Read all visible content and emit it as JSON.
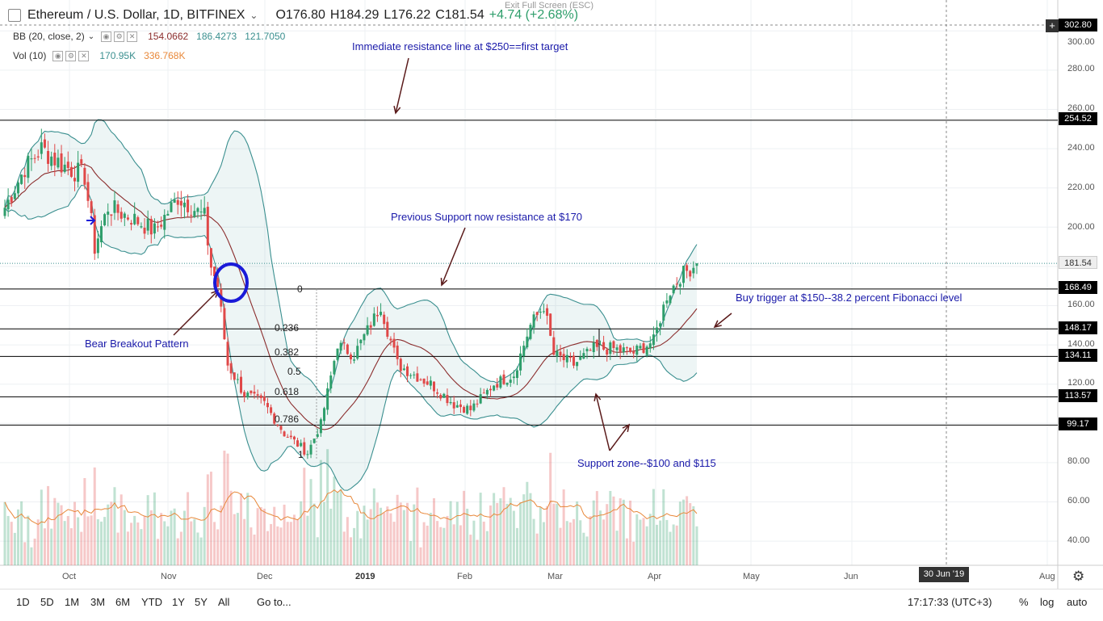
{
  "header": {
    "symbol": "Ethereum / U.S. Dollar, 1D, BITFINEX",
    "open": "O176.80",
    "high": "H184.29",
    "low": "L176.22",
    "close": "C181.54",
    "change": "+4.74 (+2.68%)",
    "exit_fullscreen": "Exit Full Screen (ESC)"
  },
  "indicators": {
    "bb": {
      "label": "BB (20, close, 2)",
      "v1": "154.0662",
      "v2": "186.4273",
      "v3": "121.7050"
    },
    "vol": {
      "label": "Vol (10)",
      "v1": "170.95K",
      "v2": "336.768K"
    }
  },
  "annotations": {
    "resistance250": "Immediate resistance line at $250==first target",
    "resistance170": "Previous Support now resistance at $170",
    "buy_trigger": "Buy trigger at $150--38.2 percent Fibonacci level",
    "bear_breakout": "Bear Breakout Pattern",
    "support_zone": "Support zone--$100 and $115"
  },
  "fib_labels": [
    "0",
    "0.236",
    "0.382",
    "0.5",
    "0.618",
    "0.786",
    "1"
  ],
  "price_tags": {
    "top": "302.80",
    "r254": "254.52",
    "current": "181.54",
    "r168": "168.49",
    "r148": "148.17",
    "r134": "134.11",
    "r113": "113.57",
    "r99": "99.17"
  },
  "y_axis_labels": [
    "300.00",
    "280.00",
    "260.00",
    "240.00",
    "220.00",
    "200.00",
    "180.00",
    "160.00",
    "140.00",
    "120.00",
    "100.00",
    "80.00",
    "60.00",
    "40.00"
  ],
  "x_axis_labels": {
    "oct": "Oct",
    "nov": "Nov",
    "dec": "Dec",
    "y2019": "2019",
    "feb": "Feb",
    "mar": "Mar",
    "apr": "Apr",
    "may": "May",
    "jun": "Jun",
    "aug": "Aug"
  },
  "x_highlight": "30 Jun '19",
  "timeframes": [
    "1D",
    "5D",
    "1M",
    "3M",
    "6M",
    "YTD",
    "1Y",
    "5Y",
    "All"
  ],
  "goto": "Go to...",
  "clock": "17:17:33 (UTC+3)",
  "scale_options": {
    "percent": "%",
    "log": "log",
    "auto": "auto"
  },
  "colors": {
    "up": "#2e9e6b",
    "down": "#e04848",
    "bb_band": "#3a8f8f",
    "bb_basis": "#8b2d2d",
    "annotation": "#1a1aaa",
    "arrow": "#5a1a1a",
    "circle": "#1a1ad8"
  },
  "chart_data": {
    "type": "candlestick",
    "title": "Ethereum / U.S. Dollar, 1D, BITFINEX",
    "last": {
      "open": 176.8,
      "high": 184.29,
      "low": 176.22,
      "close": 181.54,
      "change": 4.74,
      "change_pct": 2.68
    },
    "horizontal_levels": [
      254.52,
      168.49,
      148.17,
      134.11,
      113.57,
      99.17
    ],
    "fibonacci": [
      {
        "level": 0,
        "price": 168.49
      },
      {
        "level": 0.236,
        "price": 148.17
      },
      {
        "level": 0.382,
        "price": 134.11
      },
      {
        "level": 0.5,
        "price": 124.0
      },
      {
        "level": 0.618,
        "price": 113.57
      },
      {
        "level": 0.786,
        "price": 99.17
      },
      {
        "level": 1,
        "price": 82.0
      }
    ],
    "ylim": [
      25,
      310
    ],
    "price_path": [
      {
        "date": "2018-09-14",
        "close": 210
      },
      {
        "date": "2018-09-20",
        "close": 230
      },
      {
        "date": "2018-09-25",
        "close": 240
      },
      {
        "date": "2018-10-01",
        "close": 232
      },
      {
        "date": "2018-10-08",
        "close": 226
      },
      {
        "date": "2018-10-11",
        "close": 190
      },
      {
        "date": "2018-10-15",
        "close": 210
      },
      {
        "date": "2018-10-22",
        "close": 205
      },
      {
        "date": "2018-10-29",
        "close": 198
      },
      {
        "date": "2018-11-05",
        "close": 215
      },
      {
        "date": "2018-11-08",
        "close": 212
      },
      {
        "date": "2018-11-13",
        "close": 205
      },
      {
        "date": "2018-11-15",
        "close": 180
      },
      {
        "date": "2018-11-17",
        "close": 170
      },
      {
        "date": "2018-11-20",
        "close": 130
      },
      {
        "date": "2018-11-25",
        "close": 115
      },
      {
        "date": "2018-12-01",
        "close": 110
      },
      {
        "date": "2018-12-07",
        "close": 95
      },
      {
        "date": "2018-12-14",
        "close": 85
      },
      {
        "date": "2018-12-18",
        "close": 100
      },
      {
        "date": "2018-12-23",
        "close": 140
      },
      {
        "date": "2018-12-28",
        "close": 135
      },
      {
        "date": "2019-01-05",
        "close": 160
      },
      {
        "date": "2019-01-10",
        "close": 130
      },
      {
        "date": "2019-01-15",
        "close": 125
      },
      {
        "date": "2019-01-20",
        "close": 120
      },
      {
        "date": "2019-01-27",
        "close": 110
      },
      {
        "date": "2019-02-01",
        "close": 107
      },
      {
        "date": "2019-02-08",
        "close": 120
      },
      {
        "date": "2019-02-14",
        "close": 125
      },
      {
        "date": "2019-02-19",
        "close": 150
      },
      {
        "date": "2019-02-23",
        "close": 160
      },
      {
        "date": "2019-02-26",
        "close": 135
      },
      {
        "date": "2019-03-04",
        "close": 130
      },
      {
        "date": "2019-03-10",
        "close": 138
      },
      {
        "date": "2019-03-16",
        "close": 138
      },
      {
        "date": "2019-03-22",
        "close": 136
      },
      {
        "date": "2019-03-28",
        "close": 142
      },
      {
        "date": "2019-04-01",
        "close": 165
      },
      {
        "date": "2019-04-05",
        "close": 175
      },
      {
        "date": "2019-04-10",
        "close": 181.54
      }
    ],
    "volume_ma_values_k": [
      320,
      500,
      450,
      280,
      260,
      240,
      230,
      260,
      340,
      620,
      480,
      440,
      500,
      380,
      300,
      270,
      260,
      280,
      320,
      360,
      260,
      240,
      240,
      220,
      230,
      280,
      410,
      420,
      380
    ]
  }
}
